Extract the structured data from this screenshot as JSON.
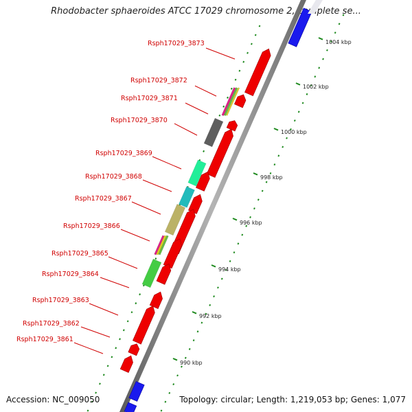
{
  "title": "Rhodobacter sphaeroides ATCC 17029 chromosome 2, complete se...",
  "footer": {
    "accession": "Accession: NC_009050",
    "topology": "Topology: circular; Length: 1,219,053 bp; Genes: 1,077"
  },
  "colors": {
    "background": "#ffffff",
    "backbone": "#8c8c8c",
    "label": "#d00000",
    "forward_gene": "#ee0000",
    "reverse_gene": "#1a1aee",
    "gc_dots": "#1f8a1f"
  },
  "gene_labels": [
    "Rsph17029_3873",
    "Rsph17029_3872",
    "Rsph17029_3871",
    "Rsph17029_3870",
    "Rsph17029_3869",
    "Rsph17029_3868",
    "Rsph17029_3867",
    "Rsph17029_3866",
    "Rsph17029_3865",
    "Rsph17029_3864",
    "Rsph17029_3863",
    "Rsph17029_3862",
    "Rsph17029_3861"
  ],
  "scale_ticks": [
    "1004 kbp",
    "1002 kbp",
    "1000 kbp",
    "998 kbp",
    "996 kbp",
    "994 kbp",
    "992 kbp",
    "990 kbp"
  ]
}
